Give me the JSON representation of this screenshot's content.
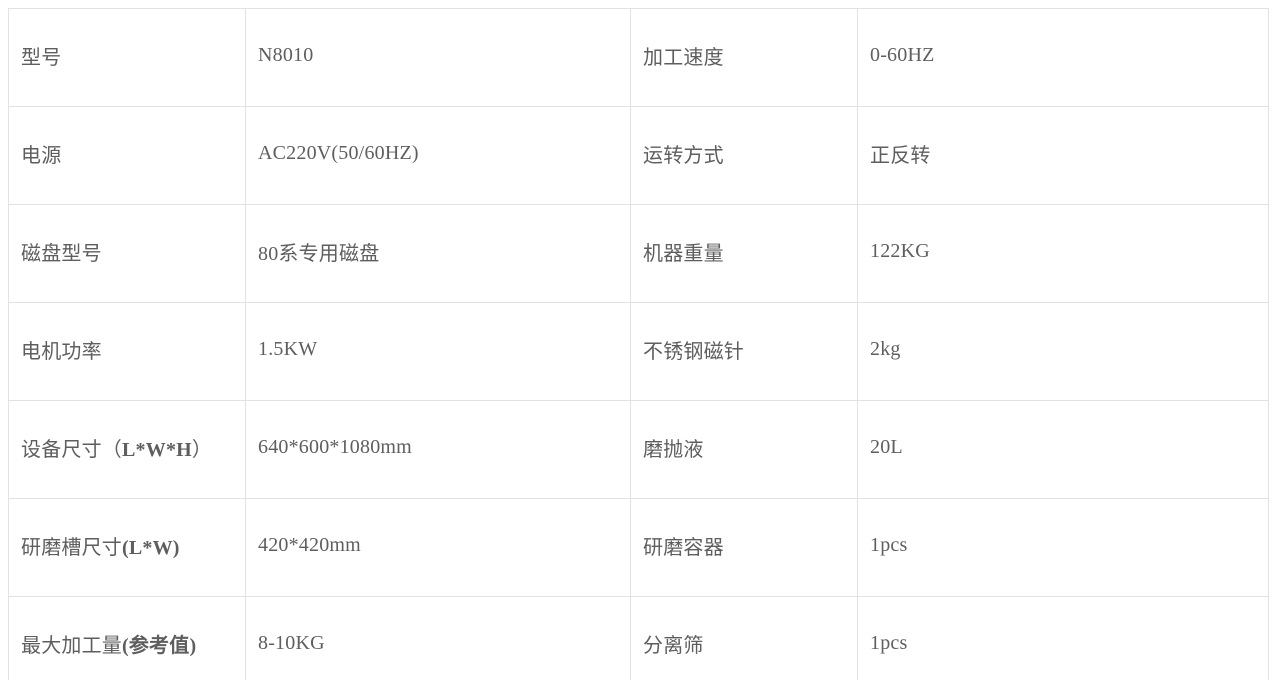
{
  "colors": {
    "background": "#ffffff",
    "cell_border": "#e2e2e2",
    "table_bottom_border": "#cbcbcb",
    "text": "#5e5e5e"
  },
  "spec_table": {
    "rows": [
      {
        "param1": {
          "pre": "型号",
          "bold": "",
          "post": ""
        },
        "value1": "N8010",
        "param2": "加工速度",
        "value2": "0-60HZ"
      },
      {
        "param1": {
          "pre": "电源",
          "bold": "",
          "post": ""
        },
        "value1": "AC220V(50/60HZ)",
        "param2": "运转方式",
        "value2": "正反转"
      },
      {
        "param1": {
          "pre": "磁盘型号",
          "bold": "",
          "post": ""
        },
        "value1": "80系专用磁盘",
        "param2": "机器重量",
        "value2": "122KG"
      },
      {
        "param1": {
          "pre": "电机功率",
          "bold": "",
          "post": ""
        },
        "value1": "1.5KW",
        "param2": "不锈钢磁针",
        "value2": "2kg"
      },
      {
        "param1": {
          "pre": "设备尺寸（",
          "bold": "L*W*H",
          "post": "）"
        },
        "value1": "640*600*1080mm",
        "param2": "磨抛液",
        "value2": "20L"
      },
      {
        "param1": {
          "pre": "研磨槽尺寸",
          "bold": "(L*W)",
          "post": ""
        },
        "value1": "420*420mm",
        "param2": "研磨容器",
        "value2": "1pcs"
      },
      {
        "param1": {
          "pre": "最大加工量",
          "bold": "(参考值)",
          "post": ""
        },
        "value1": "8-10KG",
        "param2": "分离筛",
        "value2": "1pcs"
      }
    ]
  }
}
